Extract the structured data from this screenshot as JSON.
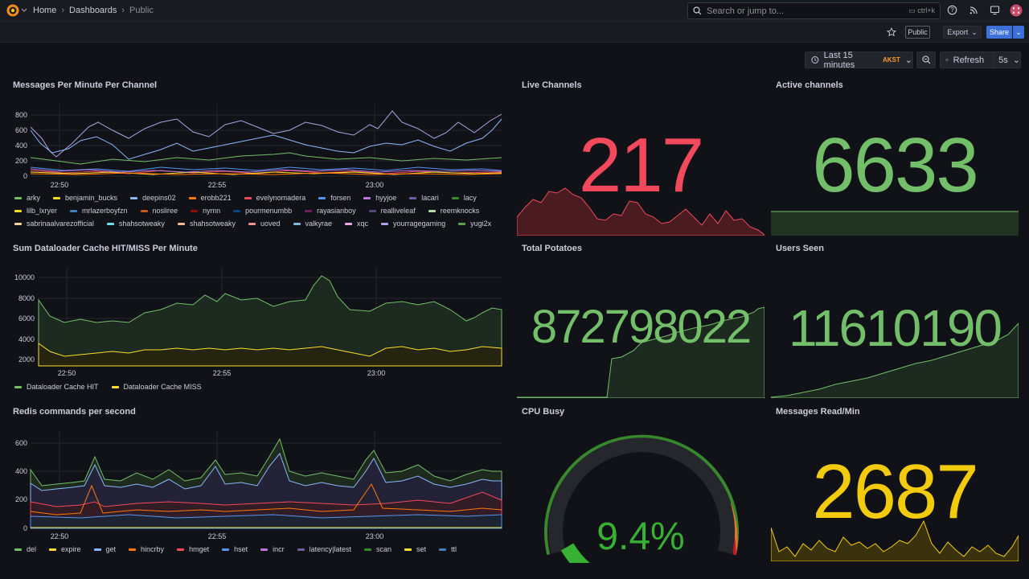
{
  "breadcrumb": {
    "home": "Home",
    "dashboards": "Dashboards",
    "current": "Public"
  },
  "search": {
    "placeholder": "Search or jump to...",
    "shortcut": "ctrl+k"
  },
  "toolbar": {
    "public_badge": "Public",
    "export_label": "Export",
    "share_label": "Share"
  },
  "timepicker": {
    "range": "Last 15 minutes",
    "tz": "AKST",
    "refresh_label": "Refresh",
    "interval": "5s"
  },
  "colors": {
    "accent": "#3d71d9",
    "green": "#73bf69",
    "red": "#f2495c",
    "yellow": "#fade2a",
    "orange": "#ff9830",
    "stat_yellow": "#f2cc0c"
  },
  "panels": {
    "messages": {
      "title": "Messages Per Minute Per Channel",
      "yticks": [
        "800",
        "600",
        "400",
        "200",
        "0"
      ],
      "xticks": [
        "22:50",
        "22:55",
        "23:00"
      ],
      "legend": [
        {
          "name": "arky",
          "color": "#73bf69"
        },
        {
          "name": "benjamin_bucks",
          "color": "#fade2a"
        },
        {
          "name": "deepins02",
          "color": "#8ab8ff"
        },
        {
          "name": "erobb221",
          "color": "#ff780a"
        },
        {
          "name": "evelynomadera",
          "color": "#f2495c"
        },
        {
          "name": "forsen",
          "color": "#5794f2"
        },
        {
          "name": "hyyjoe",
          "color": "#b877d9"
        },
        {
          "name": "lacari",
          "color": "#705da0"
        },
        {
          "name": "lacy",
          "color": "#37872d"
        },
        {
          "name": "lilb_lxryer",
          "color": "#fade2a"
        },
        {
          "name": "mrlazerboyfzn",
          "color": "#447ebc"
        },
        {
          "name": "nosliree",
          "color": "#c15c17"
        },
        {
          "name": "nymn",
          "color": "#890f02"
        },
        {
          "name": "pourmenumbb",
          "color": "#0a437c"
        },
        {
          "name": "rayasianboy",
          "color": "#6d1f62"
        },
        {
          "name": "realliveleaf",
          "color": "#584477"
        },
        {
          "name": "reemknocks",
          "color": "#b7dbab"
        },
        {
          "name": "sabrinaalvarezofficial",
          "color": "#f4d598"
        },
        {
          "name": "shahsotweaky",
          "color": "#70dbed"
        },
        {
          "name": "shahsotweaky",
          "color": "#f9ba8f"
        },
        {
          "name": "uoved",
          "color": "#f29191"
        },
        {
          "name": "valkyrae",
          "color": "#82b5d8"
        },
        {
          "name": "xqc",
          "color": "#e5a8e2"
        },
        {
          "name": "yourragegaming",
          "color": "#aea2e0"
        },
        {
          "name": "yugi2x",
          "color": "#629e51"
        }
      ]
    },
    "live": {
      "title": "Live Channels",
      "value": "217"
    },
    "active": {
      "title": "Active channels",
      "value": "6633"
    },
    "dataloader": {
      "title": "Sum Dataloader Cache HIT/MISS Per Minute",
      "yticks": [
        "10000",
        "8000",
        "6000",
        "4000",
        "2000"
      ],
      "xticks": [
        "22:50",
        "22:55",
        "23:00"
      ],
      "legend": [
        {
          "name": "Dataloader Cache HIT",
          "color": "#73bf69"
        },
        {
          "name": "Dataloader Cache MISS",
          "color": "#fade2a"
        }
      ]
    },
    "potatoes": {
      "title": "Total Potatoes",
      "value": "872798022"
    },
    "users": {
      "title": "Users Seen",
      "value": "11610190"
    },
    "redis": {
      "title": "Redis commands per second",
      "yticks": [
        "600",
        "400",
        "200",
        "0"
      ],
      "xticks": [
        "22:50",
        "22:55",
        "23:00"
      ],
      "legend": [
        {
          "name": "del",
          "color": "#73bf69"
        },
        {
          "name": "expire",
          "color": "#fade2a"
        },
        {
          "name": "get",
          "color": "#8ab8ff"
        },
        {
          "name": "hincrby",
          "color": "#ff780a"
        },
        {
          "name": "hmget",
          "color": "#f2495c"
        },
        {
          "name": "hset",
          "color": "#5794f2"
        },
        {
          "name": "incr",
          "color": "#b877d9"
        },
        {
          "name": "latency|latest",
          "color": "#705da0"
        },
        {
          "name": "scan",
          "color": "#37872d"
        },
        {
          "name": "set",
          "color": "#fade2a"
        },
        {
          "name": "ttl",
          "color": "#447ebc"
        }
      ]
    },
    "cpu": {
      "title": "CPU Busy",
      "value": "9.4%",
      "percent": 9.4
    },
    "msgread": {
      "title": "Messages Read/Min",
      "value": "2687"
    }
  }
}
